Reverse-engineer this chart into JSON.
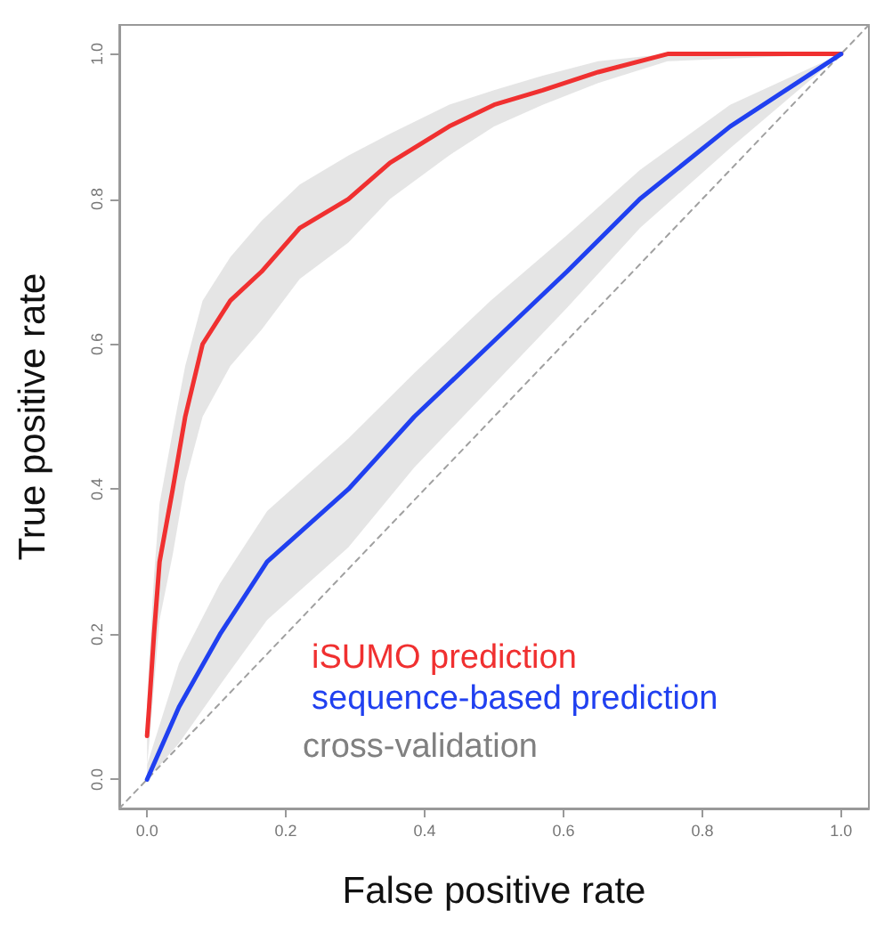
{
  "chart_data": {
    "type": "line",
    "xlabel": "False positive rate",
    "ylabel": "True positive rate",
    "xlim": [
      -0.04,
      1.04
    ],
    "ylim": [
      -0.04,
      1.04
    ],
    "xticks": [
      {
        "value": 0,
        "label": "0.0"
      },
      0.2,
      0.4,
      0.6,
      0.8,
      {
        "value": 1,
        "label": "1.0"
      }
    ],
    "yticks": [
      {
        "value": 0,
        "label": "0.0"
      },
      0.2,
      0.4,
      0.6,
      0.8,
      {
        "value": 1,
        "label": "1.0"
      }
    ],
    "grid": false,
    "legend": "bottom right",
    "marker": "none",
    "series": [
      {
        "name": "iSUMO prediction",
        "color": "#f03030",
        "x": [
          0,
          0.003,
          0.01,
          0.018,
          0.037,
          0.055,
          0.08,
          0.12,
          0.165,
          0.22,
          0.29,
          0.35,
          0.435,
          0.5,
          0.57,
          0.65,
          0.75,
          1
        ],
        "values": [
          0.06,
          0.1,
          0.2,
          0.3,
          0.4,
          0.5,
          0.6,
          0.66,
          0.7,
          0.76,
          0.8,
          0.85,
          0.9,
          0.93,
          0.95,
          0.975,
          1,
          1
        ],
        "lower": [
          0.02,
          0.05,
          0.13,
          0.22,
          0.31,
          0.41,
          0.5,
          0.57,
          0.62,
          0.69,
          0.74,
          0.8,
          0.86,
          0.9,
          0.93,
          0.96,
          0.99,
          1
        ],
        "upper": [
          0.1,
          0.16,
          0.28,
          0.38,
          0.48,
          0.57,
          0.66,
          0.72,
          0.77,
          0.82,
          0.86,
          0.89,
          0.93,
          0.95,
          0.97,
          0.99,
          1,
          1
        ]
      },
      {
        "name": "sequence-based prediction",
        "color": "#2040f0",
        "x": [
          0,
          0.046,
          0.105,
          0.173,
          0.29,
          0.385,
          0.495,
          0.605,
          0.71,
          0.84,
          1
        ],
        "values": [
          0,
          0.1,
          0.2,
          0.3,
          0.4,
          0.5,
          0.6,
          0.7,
          0.8,
          0.9,
          1
        ],
        "lower": [
          0,
          0.05,
          0.13,
          0.22,
          0.32,
          0.43,
          0.54,
          0.65,
          0.76,
          0.87,
          1
        ],
        "upper": [
          0.02,
          0.16,
          0.27,
          0.37,
          0.47,
          0.56,
          0.66,
          0.75,
          0.84,
          0.93,
          1
        ]
      },
      {
        "type": "line",
        "color": "#a0a0a0",
        "line_style": "dashed",
        "x": [
          -0.04,
          1.04
        ],
        "values": [
          -0.04,
          1.04
        ]
      }
    ],
    "annotations": [
      "cross-validation"
    ]
  }
}
